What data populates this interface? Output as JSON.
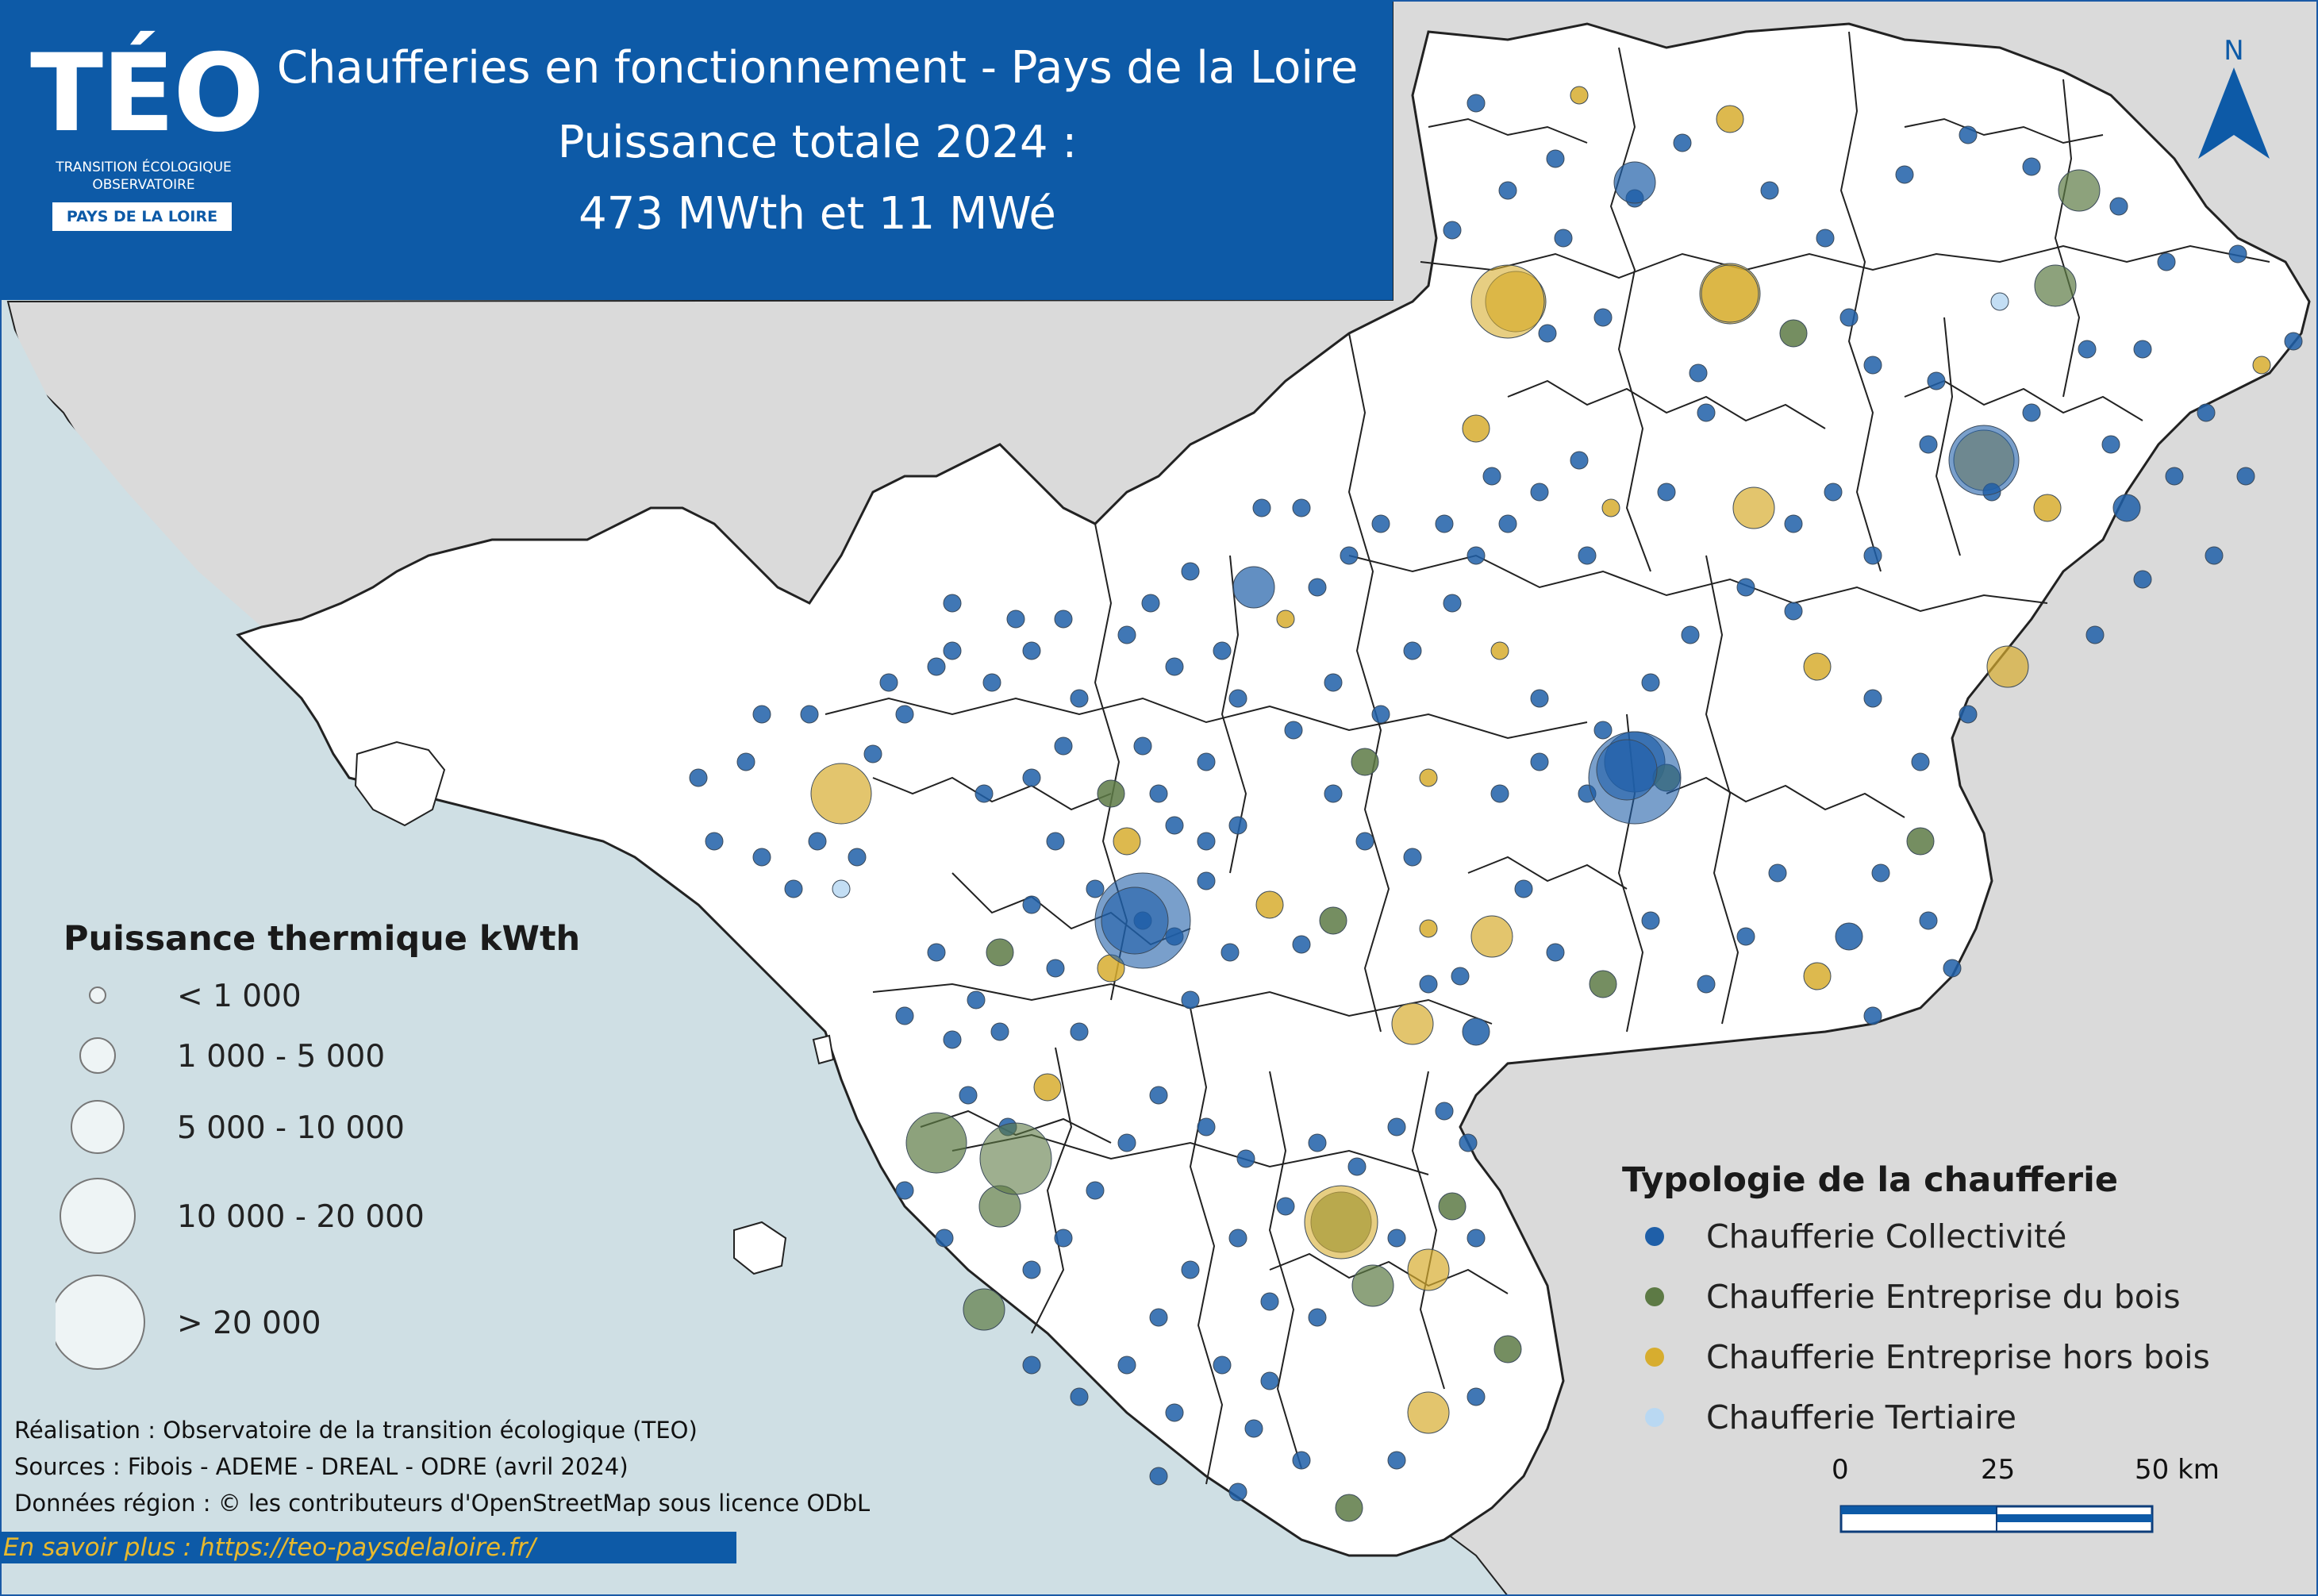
{
  "title": {
    "line1": "Chaufferies en fonctionnement - Pays de la Loire",
    "line2": "Puissance totale 2024 :",
    "line3": "473 MWth et 11 MWé"
  },
  "logo": {
    "name": "TÉO",
    "subtitle1": "TRANSITION ÉCOLOGIQUE",
    "subtitle2": "OBSERVATOIRE",
    "region": "PAYS DE LA LOIRE"
  },
  "north_arrow": "N",
  "legend_size": {
    "title": "Puissance thermique kWth",
    "classes": [
      "< 1 000",
      "1 000 - 5 000",
      "5 000 - 10 000",
      "10 000 - 20 000",
      "> 20 000"
    ]
  },
  "legend_type": {
    "title": "Typologie de la chaufferie",
    "items": [
      {
        "label": "Chaufferie Collectivité",
        "color": "#1f5fa8"
      },
      {
        "label": "Chaufferie Entreprise du bois",
        "color": "#5d7a45"
      },
      {
        "label": "Chaufferie Entreprise hors bois",
        "color": "#d7ad2f"
      },
      {
        "label": "Chaufferie Tertiaire",
        "color": "#b9d8f2"
      }
    ]
  },
  "scale": {
    "labels": [
      "0",
      "25",
      "50 km"
    ]
  },
  "credits": {
    "line1": "Réalisation : Observatoire de la transition écologique (TEO)",
    "line2": "Sources : Fibois - ADEME - DREAL - ODRE (avril 2024)",
    "line3": "Données région : © les contributeurs d'OpenStreetMap sous licence ODbL"
  },
  "more_link": "En savoir plus : https://teo-paysdelaloire.fr/",
  "colors": {
    "header": "#0d5aa7",
    "sea": "#cfdfe4",
    "outside": "#dadada",
    "land": "#ffffff"
  }
}
